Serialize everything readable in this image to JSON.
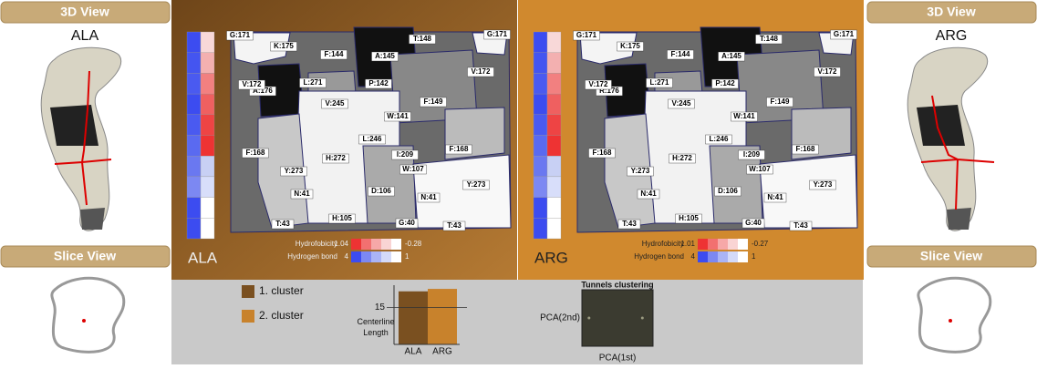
{
  "side_panels": [
    {
      "view_header": "3D View",
      "label": "ALA",
      "slice_header": "Slice View"
    },
    {
      "view_header": "3D View",
      "label": "ARG",
      "slice_header": "Slice View"
    }
  ],
  "maps": [
    {
      "name": "ALA",
      "residues": [
        "G:171",
        "K:175",
        "A:145",
        "T:148",
        "G:171",
        "F:144",
        "V:172",
        "A:176",
        "L:271",
        "P:142",
        "V:172",
        "V:245",
        "F:149",
        "W:141",
        "L:246",
        "I:209",
        "F:168",
        "H:272",
        "F:168",
        "Y:273",
        "W:107",
        "D:106",
        "Y:273",
        "N:41",
        "N:41",
        "T:43",
        "H:105",
        "G:40",
        "T:43"
      ],
      "legend": {
        "hydro_label": "Hydrofobicity",
        "hydro_max": 1.04,
        "hydro_min": -0.28,
        "hbond_label": "Hydrogen bond",
        "hbond_max": 4,
        "hbond_min": 1
      }
    },
    {
      "name": "ARG",
      "residues": [
        "G:171",
        "K:175",
        "A:145",
        "T:148",
        "G:171",
        "F:144",
        "V:172",
        "R:176",
        "L:271",
        "P:142",
        "V:172",
        "V:245",
        "F:149",
        "W:141",
        "L:246",
        "I:209",
        "F:168",
        "H:272",
        "F:168",
        "Y:273",
        "W:107",
        "D:106",
        "Y:273",
        "N:41",
        "N:41",
        "T:43",
        "H:105",
        "G:40",
        "T:43"
      ],
      "legend": {
        "hydro_label": "Hydrofobicity",
        "hydro_max": 1.01,
        "hydro_min": -0.27,
        "hbond_label": "Hydrogen bond",
        "hbond_max": 4,
        "hbond_min": 1
      }
    }
  ],
  "cluster_legend": [
    {
      "label": "1. cluster",
      "color": "#7a5020"
    },
    {
      "label": "2. cluster",
      "color": "#c8822c"
    }
  ],
  "chart_data": [
    {
      "type": "bar",
      "y_label": "Centerline Length",
      "categories": [
        "ALA",
        "ARG"
      ],
      "values": [
        21.5,
        22.5
      ],
      "colors": [
        "#7a5020",
        "#c8822c"
      ],
      "ylim": [
        0,
        24
      ],
      "yticks": [
        15
      ]
    },
    {
      "type": "scatter",
      "title": "Tunnels clustering",
      "x_label": "PCA(1st)",
      "y_label": "PCA(2nd)",
      "x": [
        -0.8,
        0.7
      ],
      "y": [
        0,
        0
      ],
      "xlim": [
        -1,
        1
      ],
      "ylim": [
        -1,
        1
      ],
      "color": "#9a9a80"
    }
  ]
}
